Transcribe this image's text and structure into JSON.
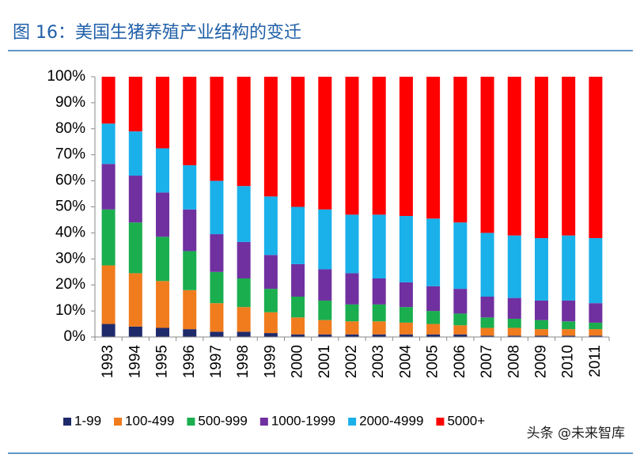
{
  "chart_data": {
    "type": "stacked_bar",
    "title": "图 16：美国生猪养殖产业结构的变迁",
    "watermark": "头条 @未来智库",
    "categories": [
      "1993",
      "1994",
      "1995",
      "1996",
      "1997",
      "1998",
      "1999",
      "2000",
      "2001",
      "2002",
      "2003",
      "2004",
      "2005",
      "2006",
      "2007",
      "2008",
      "2009",
      "2010",
      "2011"
    ],
    "series": [
      {
        "name": "1-99",
        "color": "#1f2a6b",
        "values": [
          5,
          4,
          3.5,
          3,
          2,
          2,
          1.5,
          1,
          1,
          1,
          1,
          1,
          1,
          1,
          0.5,
          0.5,
          0.5,
          0.5,
          0.5
        ]
      },
      {
        "name": "100-499",
        "color": "#f07c1e",
        "values": [
          22.5,
          20.5,
          18,
          15,
          11,
          9.5,
          8,
          6.5,
          5.5,
          5,
          5,
          4.5,
          4,
          3.5,
          3,
          3,
          2.5,
          2.5,
          2.5
        ]
      },
      {
        "name": "500-999",
        "color": "#1aae4f",
        "values": [
          21.5,
          19.5,
          17,
          15,
          12,
          11,
          9,
          8,
          7.5,
          6.5,
          6.5,
          6,
          5,
          4.5,
          4,
          3.5,
          3.5,
          3,
          2.5
        ]
      },
      {
        "name": "1000-1999",
        "color": "#7030a0",
        "values": [
          17.5,
          18,
          17,
          16,
          14.5,
          14,
          13,
          12.5,
          12,
          12,
          10,
          9.5,
          9.5,
          9.5,
          8,
          8,
          7.5,
          8,
          7.5
        ]
      },
      {
        "name": "2000-4999",
        "color": "#1ab0ea",
        "values": [
          15.5,
          17,
          17,
          17,
          20.5,
          21.5,
          22.5,
          22,
          23,
          22.5,
          24.5,
          25.5,
          26,
          25.5,
          24.5,
          24,
          24,
          25,
          25
        ]
      },
      {
        "name": "5000+",
        "color": "#ff0000",
        "values": [
          18,
          21,
          27.5,
          34,
          40,
          42,
          46,
          50,
          51,
          53,
          53,
          53.5,
          54.5,
          56,
          60,
          61,
          62,
          61,
          62
        ]
      }
    ],
    "ylim": [
      0,
      100
    ],
    "yticks": [
      {
        "value": 0,
        "label": "0%"
      },
      {
        "value": 10,
        "label": "10%"
      },
      {
        "value": 20,
        "label": "20%"
      },
      {
        "value": 30,
        "label": "30%"
      },
      {
        "value": 40,
        "label": "40%"
      },
      {
        "value": 50,
        "label": "50%"
      },
      {
        "value": 60,
        "label": "60%"
      },
      {
        "value": 70,
        "label": "70%"
      },
      {
        "value": 80,
        "label": "80%"
      },
      {
        "value": 90,
        "label": "90%"
      },
      {
        "value": 100,
        "label": "100%"
      }
    ],
    "legend": "bottom"
  }
}
